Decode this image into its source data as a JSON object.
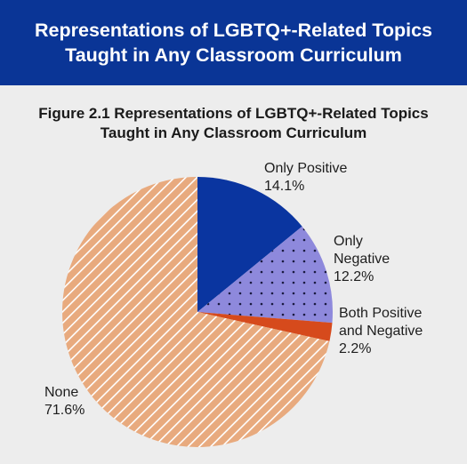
{
  "banner": {
    "line1": "Representations of LGBTQ+-Related Topics",
    "line2": "Taught in Any Classroom Curriculum"
  },
  "chart_data": {
    "type": "pie",
    "title_line1": "Figure 2.1 Representations of LGBTQ+-Related Topics",
    "title_line2": "Taught in Any Classroom Curriculum",
    "slices": [
      {
        "label_lines": [
          "Only Positive"
        ],
        "value": 14.1,
        "value_text": "14.1%",
        "color": "#0a35a0",
        "pattern": "solid"
      },
      {
        "label_lines": [
          "Only",
          "Negative"
        ],
        "value": 12.2,
        "value_text": "12.2%",
        "color": "#8e89dc",
        "pattern": "dots"
      },
      {
        "label_lines": [
          "Both Positive",
          "and Negative"
        ],
        "value": 2.2,
        "value_text": "2.2%",
        "color": "#d64a1c",
        "pattern": "solid"
      },
      {
        "label_lines": [
          "None"
        ],
        "value": 71.6,
        "value_text": "71.6%",
        "color": "#e8aa7e",
        "pattern": "hatch"
      }
    ]
  }
}
